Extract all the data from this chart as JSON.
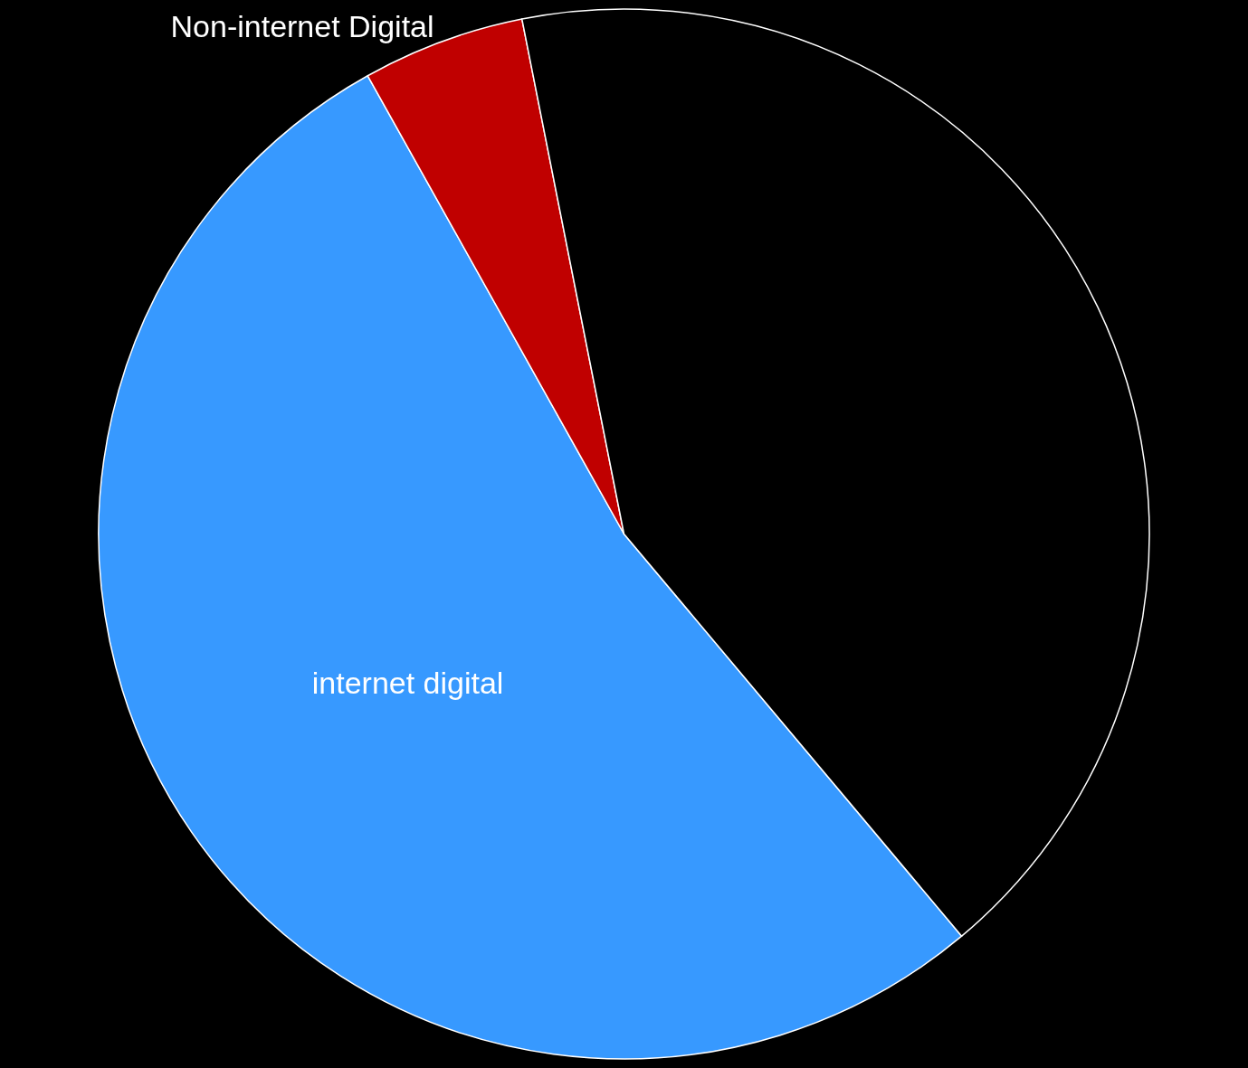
{
  "chart_data": {
    "type": "pie",
    "categories": [
      "internet digital",
      "Non-internet Digital",
      null
    ],
    "values": [
      53,
      5,
      42
    ],
    "colors": [
      "#3799ff",
      "#c00000",
      "#000000"
    ],
    "legend": false
  }
}
